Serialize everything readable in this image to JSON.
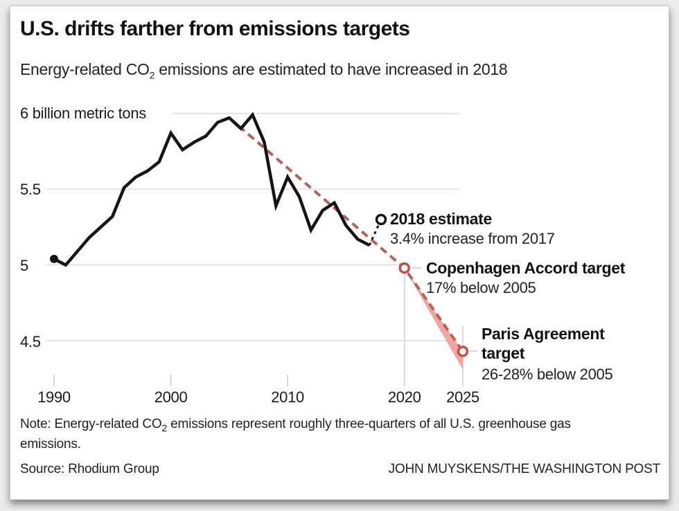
{
  "header": {
    "title": "U.S. drifts farther from emissions targets",
    "subtitle_prefix": "Energy-related CO",
    "subtitle_sub": "2",
    "subtitle_suffix": " emissions are estimated to have increased in 2018"
  },
  "chart_data": {
    "type": "line",
    "title": "U.S. drifts farther from emissions targets",
    "ylabel": "billion metric tons",
    "ylim": [
      4.2,
      6.1
    ],
    "xlim": [
      1990,
      2025
    ],
    "grid": true,
    "y_ticks": [
      6,
      5.5,
      5,
      4.5
    ],
    "y_tick_labels": [
      "6 billion metric tons",
      "5.5",
      "5",
      "4.5"
    ],
    "x_ticks": [
      1990,
      2000,
      2010,
      2020,
      2025
    ],
    "x_tick_labels": [
      "1990",
      "2000",
      "2010",
      "2020",
      "2025"
    ],
    "series": [
      {
        "name": "historical energy-related CO2 emissions",
        "style": "solid",
        "color": "#141414",
        "x": [
          1990,
          1991,
          1992,
          1993,
          1994,
          1995,
          1996,
          1997,
          1998,
          1999,
          2000,
          2001,
          2002,
          2003,
          2004,
          2005,
          2006,
          2007,
          2008,
          2009,
          2010,
          2011,
          2012,
          2013,
          2014,
          2015,
          2016,
          2017
        ],
        "values": [
          5.04,
          5.0,
          5.09,
          5.18,
          5.25,
          5.32,
          5.51,
          5.58,
          5.62,
          5.68,
          5.87,
          5.76,
          5.81,
          5.85,
          5.94,
          5.97,
          5.9,
          5.99,
          5.81,
          5.39,
          5.58,
          5.45,
          5.23,
          5.36,
          5.41,
          5.26,
          5.17,
          5.13
        ]
      },
      {
        "name": "target trajectory",
        "style": "dashed",
        "color": "#b5625a",
        "x": [
          2005,
          2020,
          2025
        ],
        "values": [
          5.97,
          4.98,
          4.43
        ]
      },
      {
        "name": "2018 estimate connector",
        "style": "dashed",
        "color": "#141414",
        "x": [
          2017,
          2018
        ],
        "values": [
          5.13,
          5.3
        ]
      }
    ],
    "band": {
      "name": "paris target range 26-28% below 2005",
      "color": "#f2a59d",
      "x": [
        2020,
        2025
      ],
      "upper": [
        4.98,
        4.43
      ],
      "lower": [
        4.98,
        4.31
      ]
    },
    "marker_color": "#c44f46",
    "annotations": [
      {
        "label": "2018 estimate",
        "sublabel": "3.4% increase from 2017",
        "x": 2018,
        "value": 5.3
      },
      {
        "label": "Copenhagen Accord target",
        "sublabel": "17% below 2005",
        "x": 2020,
        "value": 4.98
      },
      {
        "label": "Paris Agreement target",
        "label_lines": [
          "Paris Agreement",
          "target"
        ],
        "sublabel": "26-28% below 2005",
        "x": 2025,
        "value": 4.43
      }
    ]
  },
  "footer": {
    "note_prefix": "Note: Energy-related CO",
    "note_sub": "2",
    "note_suffix": " emissions represent roughly three-quarters of all U.S. greenhouse gas emissions.",
    "source": "Source: Rhodium Group",
    "credit": "JOHN MUYSKENS/THE WASHINGTON POST"
  }
}
